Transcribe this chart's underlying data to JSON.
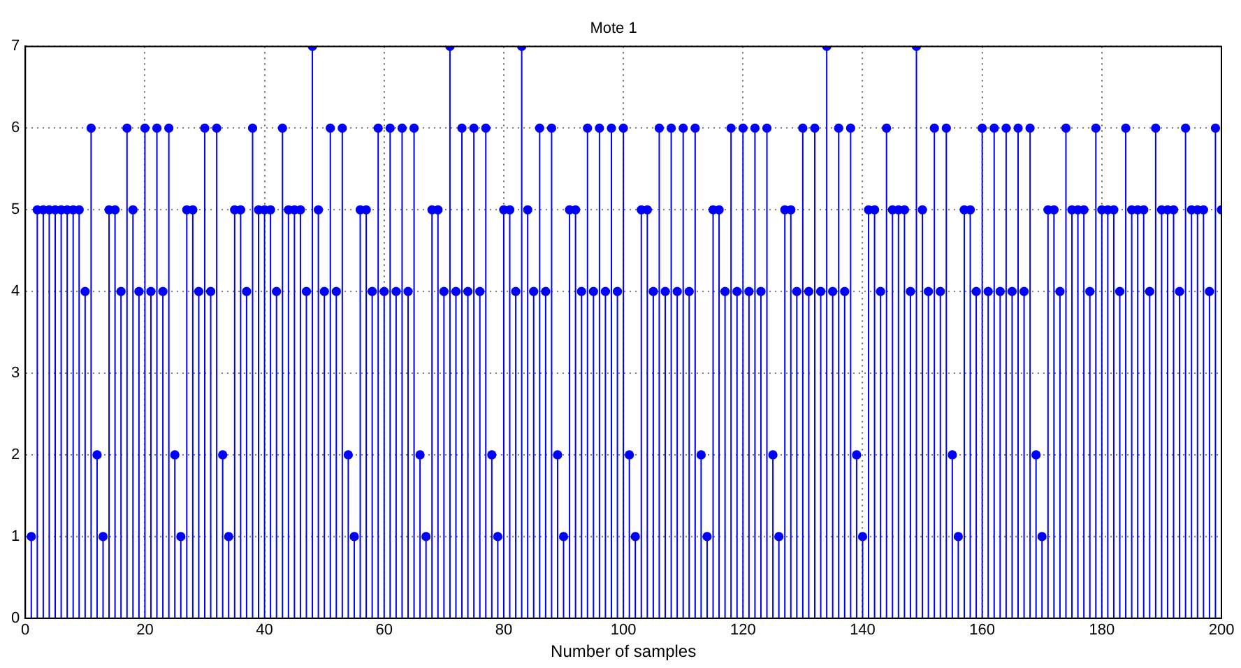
{
  "chart_data": {
    "type": "lollipop",
    "title": "Mote 1",
    "xlabel": "Number of samples",
    "x": [
      1,
      2,
      3,
      4,
      5,
      6,
      7,
      8,
      9,
      10,
      11,
      12,
      13,
      14,
      15,
      16,
      17,
      18,
      19,
      20,
      21,
      22,
      23,
      24,
      25,
      26,
      27,
      28,
      29,
      30,
      31,
      32,
      33,
      34,
      35,
      36,
      37,
      38,
      39,
      40,
      41,
      42,
      43,
      44,
      45,
      46,
      47,
      48,
      49,
      50,
      51,
      52,
      53,
      54,
      55,
      56,
      57,
      58,
      59,
      60,
      61,
      62,
      63,
      64,
      65,
      66,
      67,
      68,
      69,
      70,
      71,
      72,
      73,
      74,
      75,
      76,
      77,
      78,
      79,
      80,
      81,
      82,
      83,
      84,
      85,
      86,
      87,
      88,
      89,
      90,
      91,
      92,
      93,
      94,
      95,
      96,
      97,
      98,
      99,
      100,
      101,
      102,
      103,
      104,
      105,
      106,
      107,
      108,
      109,
      110,
      111,
      112,
      113,
      114,
      115,
      116,
      117,
      118,
      119,
      120,
      121,
      122,
      123,
      124,
      125,
      126,
      127,
      128,
      129,
      130,
      131,
      132,
      133,
      134,
      135,
      136,
      137,
      138,
      139,
      140,
      141,
      142,
      143,
      144,
      145,
      146,
      147,
      148,
      149,
      150,
      151,
      152,
      153,
      154,
      155,
      156,
      157,
      158,
      159,
      160,
      161,
      162,
      163,
      164,
      165,
      166,
      167,
      168,
      169,
      170,
      171,
      172,
      173,
      174,
      175,
      176,
      177,
      178,
      179,
      180,
      181,
      182,
      183,
      184,
      185,
      186,
      187,
      188,
      189,
      190,
      191,
      192,
      193,
      194,
      195,
      196,
      197,
      198,
      199,
      200
    ],
    "series": [
      {
        "color": "#0000ff",
        "values": [
          1,
          5,
          5,
          5,
          5,
          5,
          5,
          5,
          5,
          4,
          6,
          2,
          1,
          5,
          5,
          4,
          6,
          5,
          4,
          6,
          4,
          6,
          4,
          6,
          2,
          1,
          5,
          5,
          4,
          6,
          4,
          6,
          2,
          1,
          5,
          5,
          4,
          6,
          5,
          5,
          5,
          4,
          6,
          5,
          5,
          5,
          4,
          7,
          5,
          4,
          6,
          4,
          6,
          2,
          1,
          5,
          5,
          4,
          6,
          4,
          6,
          4,
          6,
          4,
          6,
          2,
          1,
          5,
          5,
          4,
          7,
          4,
          6,
          4,
          6,
          4,
          6,
          2,
          1,
          5,
          5,
          4,
          7,
          5,
          4,
          6,
          4,
          6,
          2,
          1,
          5,
          5,
          4,
          6,
          4,
          6,
          4,
          6,
          4,
          6,
          2,
          1,
          5,
          5,
          4,
          6,
          4,
          6,
          4,
          6,
          4,
          6,
          2,
          1,
          5,
          5,
          4,
          6,
          4,
          6,
          4,
          6,
          4,
          6,
          2,
          1,
          5,
          5,
          4,
          6,
          4,
          6,
          4,
          7,
          4,
          6,
          4,
          6,
          2,
          1,
          5,
          5,
          4,
          6,
          5,
          5,
          5,
          4,
          7,
          5,
          4,
          6,
          4,
          6,
          2,
          1,
          5,
          5,
          4,
          6,
          4,
          6,
          4,
          6,
          4,
          6,
          4,
          6,
          2,
          1,
          5,
          5,
          4,
          6,
          5,
          5,
          5,
          4,
          6,
          5,
          5,
          5,
          4,
          6,
          5,
          5,
          5,
          4,
          6,
          5,
          5,
          5,
          4,
          6,
          5,
          5,
          5,
          4,
          6,
          5
        ]
      }
    ],
    "xlim": [
      0,
      200
    ],
    "xticks": [
      0,
      20,
      40,
      60,
      80,
      100,
      120,
      140,
      160,
      180,
      200
    ],
    "ylim": [
      0,
      7
    ],
    "yticks": [
      0,
      1,
      2,
      3,
      4,
      5,
      6,
      7
    ],
    "grid": true,
    "legend": false,
    "marker": "circle",
    "line_style": "solid"
  }
}
